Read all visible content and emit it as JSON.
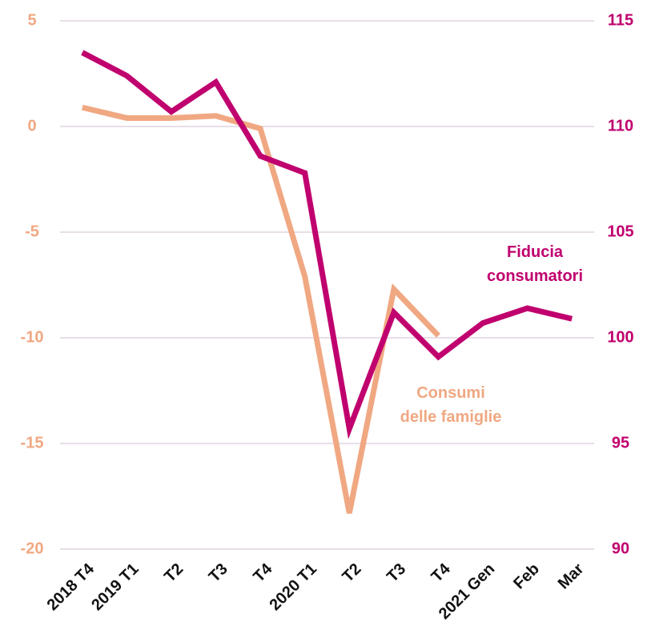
{
  "chart_data": {
    "type": "line",
    "categories": [
      "2018 T4",
      "2019 T1",
      "T2",
      "T3",
      "T4",
      "2020 T1",
      "T2",
      "T3",
      "T4",
      "2021 Gen",
      "Feb",
      "Mar"
    ],
    "series": [
      {
        "name": "Consumi delle famiglie",
        "color": "#f0a882",
        "axis": "y",
        "values": [
          0.9,
          0.4,
          0.4,
          0.5,
          -0.1,
          -7.1,
          -18.3,
          -7.7,
          -9.9,
          null,
          null,
          null
        ]
      },
      {
        "name": "Fiducia consumatori",
        "color": "#c0006e",
        "axis": "y2",
        "values": [
          113.5,
          112.4,
          110.7,
          112.1,
          108.6,
          107.8,
          95.7,
          101.2,
          99.1,
          100.7,
          101.4,
          100.9
        ]
      }
    ],
    "annotations": [
      {
        "lines": [
          "Consumi",
          "delle famiglie"
        ],
        "color": "#f0a882"
      },
      {
        "lines": [
          "Fiducia",
          "consumatori"
        ],
        "color": "#c0006e"
      }
    ],
    "ylim": [
      -20,
      5
    ],
    "yticks": [
      -20,
      -15,
      -10,
      -5,
      0,
      5
    ],
    "ycolor": "#f0a882",
    "y2lim": [
      90,
      115
    ],
    "y2ticks": [
      90,
      95,
      100,
      105,
      110,
      115
    ],
    "y2color": "#c0006e",
    "grid": true
  }
}
